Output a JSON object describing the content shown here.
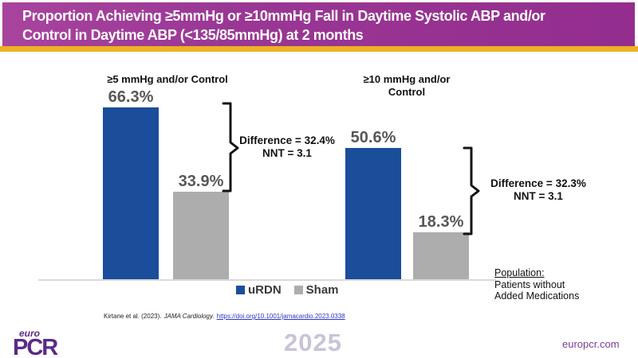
{
  "banner": {
    "title_line1": "Proportion Achieving ≥5mmHg or ≥10mmHg Fall in Daytime Systolic ABP and/or",
    "title_line2": "Control in Daytime ABP (<135/85mmHg) at 2 months",
    "background_color": "#9a3795",
    "accent_strip_color": "#edb220"
  },
  "chart_data": {
    "type": "bar",
    "unit": "%",
    "ylim": [
      0,
      70
    ],
    "grid": false,
    "legend_position": "bottom-center",
    "groups": [
      {
        "label": "≥5 mmHg and/or Control",
        "series": [
          {
            "name": "uRDN",
            "value": 66.3,
            "display": "66.3%"
          },
          {
            "name": "Sham",
            "value": 33.9,
            "display": "33.9%"
          }
        ],
        "annotation": {
          "line1": "Difference = 32.4%",
          "line2": "NNT = 3.1"
        }
      },
      {
        "label": "≥10 mmHg and/or Control",
        "series": [
          {
            "name": "uRDN",
            "value": 50.6,
            "display": "50.6%"
          },
          {
            "name": "Sham",
            "value": 18.3,
            "display": "18.3%"
          }
        ],
        "annotation": {
          "line1": "Difference = 32.3%",
          "line2": "NNT = 3.1"
        }
      }
    ],
    "legend": [
      {
        "name": "uRDN",
        "color": "#1a4e9b"
      },
      {
        "name": "Sham",
        "color": "#adadad"
      }
    ]
  },
  "population": {
    "heading": "Population:",
    "line1": "Patients without",
    "line2": "Added Medications"
  },
  "citation": {
    "authors": "Kirtane et al. (2023).",
    "journal": "JAMA Cardiology.",
    "link": "https://doi.org/10.1001/jamacardio.2023.0338"
  },
  "footer": {
    "logo_top": "euro",
    "logo_main": "PCR",
    "year": "2025",
    "website": "europcr.com"
  }
}
